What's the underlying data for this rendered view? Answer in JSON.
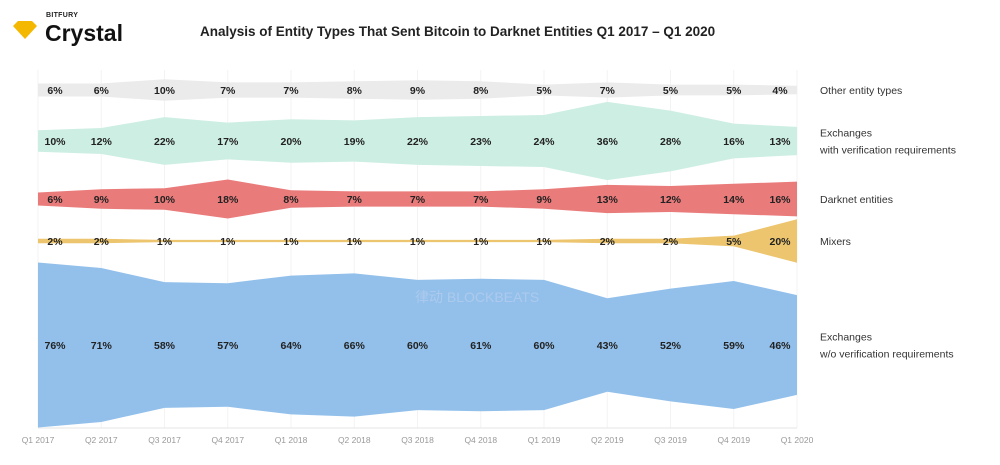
{
  "brand": {
    "company": "BITFURY",
    "product": "Crystal",
    "logo_icon": "diamond-icon",
    "logo_color": "#f5b800"
  },
  "watermark": "律动 BLOCKBEATS",
  "chart_data": {
    "type": "area",
    "title": "Analysis of Entity Types That Sent Bitcoin to Darknet Entities Q1 2017 – Q1 2020",
    "categories": [
      "Q1 2017",
      "Q2 2017",
      "Q3 2017",
      "Q4 2017",
      "Q1 2018",
      "Q2 2018",
      "Q3 2018",
      "Q4 2018",
      "Q1 2019",
      "Q2 2019",
      "Q3 2019",
      "Q4 2019",
      "Q1 2020"
    ],
    "legend": "right",
    "series": [
      {
        "name": "Other entity types",
        "color": "#ebebeb",
        "values": [
          6,
          6,
          10,
          7,
          7,
          8,
          9,
          8,
          5,
          7,
          5,
          5,
          4
        ]
      },
      {
        "name": "Exchanges\nwith verification requirements",
        "name_lines": [
          "Exchanges",
          "with verification requirements"
        ],
        "color": "#cdeee3",
        "values": [
          10,
          12,
          22,
          17,
          20,
          19,
          22,
          23,
          24,
          36,
          28,
          16,
          13
        ]
      },
      {
        "name": "Darknet entities",
        "color": "#ea7b7b",
        "values": [
          6,
          9,
          10,
          18,
          8,
          7,
          7,
          7,
          9,
          13,
          12,
          14,
          16
        ]
      },
      {
        "name": "Mixers",
        "color": "#ecc56e",
        "values": [
          2,
          2,
          1,
          1,
          1,
          1,
          1,
          1,
          1,
          2,
          2,
          5,
          20
        ]
      },
      {
        "name": "Exchanges\nw/o verification requirements",
        "name_lines": [
          "Exchanges",
          "w/o verification requirements"
        ],
        "color": "#92c0eb",
        "values": [
          76,
          71,
          58,
          57,
          64,
          66,
          60,
          61,
          60,
          43,
          52,
          59,
          46
        ]
      }
    ]
  }
}
